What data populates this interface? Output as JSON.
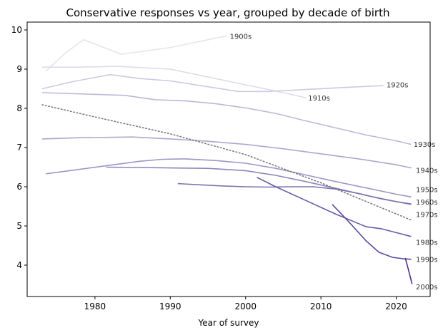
{
  "chart_data": {
    "type": "line",
    "title": "Conservative responses vs year, grouped by decade of birth",
    "xlabel": "Year of survey",
    "ylabel": "",
    "xlim": [
      1971,
      2024.5
    ],
    "ylim": [
      3.2,
      10.2
    ],
    "xticks": [
      1980,
      1990,
      2000,
      2010,
      2020
    ],
    "yticks": [
      4,
      5,
      6,
      7,
      8,
      9,
      10
    ],
    "grid": false,
    "legend": "none",
    "series": [
      {
        "name": "1900s",
        "color": "#e6e4f0",
        "x": [
          1973.5,
          1976,
          1978.5,
          1983.5,
          1990,
          1997.5
        ],
        "y": [
          8.95,
          9.4,
          9.75,
          9.38,
          9.55,
          9.85
        ]
      },
      {
        "name": "1910s",
        "color": "#dddaeb",
        "x": [
          1973,
          1978,
          1983,
          1990,
          1995,
          2000,
          2005,
          2008
        ],
        "y": [
          9.05,
          9.05,
          9.07,
          9.0,
          8.8,
          8.6,
          8.4,
          8.27
        ]
      },
      {
        "name": "1920s",
        "color": "#cdc9e2",
        "x": [
          1973,
          1977,
          1982,
          1986,
          1990,
          1995,
          1999,
          2003,
          2008,
          2013,
          2018.3
        ],
        "y": [
          8.5,
          8.68,
          8.86,
          8.76,
          8.7,
          8.55,
          8.43,
          8.43,
          8.48,
          8.53,
          8.58
        ]
      },
      {
        "name": "1930s",
        "color": "#bcb8da",
        "x": [
          1973,
          1978,
          1984,
          1988,
          1992,
          1996,
          2000,
          2004,
          2008,
          2012,
          2016,
          2020,
          2022
        ],
        "y": [
          8.4,
          8.37,
          8.33,
          8.22,
          8.19,
          8.12,
          8.01,
          7.87,
          7.68,
          7.5,
          7.32,
          7.17,
          7.08
        ]
      },
      {
        "name": "1940s",
        "color": "#aba7d0",
        "x": [
          1973,
          1978,
          1985,
          1990,
          1995,
          2000,
          2005,
          2010,
          2015,
          2020,
          2022
        ],
        "y": [
          7.22,
          7.25,
          7.27,
          7.22,
          7.16,
          7.08,
          6.97,
          6.84,
          6.71,
          6.56,
          6.48
        ]
      },
      {
        "name": "1950s",
        "color": "#9b96c6",
        "x": [
          1973.5,
          1977,
          1982,
          1986,
          1989,
          1992,
          1996,
          2000,
          2004,
          2008,
          2012,
          2016,
          2020,
          2022
        ],
        "y": [
          6.33,
          6.42,
          6.55,
          6.65,
          6.7,
          6.71,
          6.67,
          6.6,
          6.47,
          6.3,
          6.13,
          5.97,
          5.81,
          5.74
        ]
      },
      {
        "name": "1960s",
        "color": "#8c85bd",
        "x": [
          1981.5,
          1986,
          1990,
          1995,
          2000,
          2004,
          2008,
          2012,
          2016,
          2020,
          2022
        ],
        "y": [
          6.5,
          6.49,
          6.48,
          6.47,
          6.41,
          6.29,
          6.13,
          5.96,
          5.78,
          5.62,
          5.55
        ]
      },
      {
        "name": "1970s",
        "color": "#7a72b2",
        "x": [
          1991,
          1994,
          1997,
          2000,
          2003,
          2006,
          2009,
          2012,
          2015,
          2018,
          2020,
          2022
        ],
        "y": [
          6.08,
          6.05,
          6.02,
          6.0,
          5.99,
          6.0,
          6.0,
          5.94,
          5.83,
          5.69,
          5.62,
          5.56
        ]
      },
      {
        "name": "1980s",
        "color": "#6a5aa8",
        "x": [
          2001.5,
          2004,
          2008,
          2012,
          2016,
          2018,
          2020,
          2022
        ],
        "y": [
          6.24,
          6.0,
          5.65,
          5.3,
          4.98,
          4.93,
          4.83,
          4.73
        ]
      },
      {
        "name": "1990s",
        "color": "#5e4a9f",
        "x": [
          2011.5,
          2013.5,
          2016,
          2017.7,
          2019.5,
          2021,
          2022
        ],
        "y": [
          5.55,
          5.15,
          4.62,
          4.33,
          4.2,
          4.16,
          4.15
        ]
      },
      {
        "name": "2000s",
        "color": "#4f2d91",
        "x": [
          2021.2,
          2021.6,
          2022.1
        ],
        "y": [
          4.18,
          3.9,
          3.52
        ]
      }
    ],
    "trend": {
      "style": "dotted",
      "color": "#7a7a7a",
      "x": [
        1973,
        1980,
        1990,
        2000,
        2010,
        2022
      ],
      "y": [
        8.09,
        7.78,
        7.35,
        6.82,
        6.1,
        5.15
      ]
    },
    "annotations": [
      {
        "text": "1900s",
        "x": 1997.9,
        "y": 9.84
      },
      {
        "text": "1910s",
        "x": 2008.3,
        "y": 8.26
      },
      {
        "text": "1920s",
        "x": 2018.7,
        "y": 8.6
      },
      {
        "text": "1930s",
        "x": 2022.3,
        "y": 7.08
      },
      {
        "text": "1940s",
        "x": 2022.6,
        "y": 6.42
      },
      {
        "text": "1950s",
        "x": 2022.6,
        "y": 5.93
      },
      {
        "text": "1960s",
        "x": 2022.6,
        "y": 5.61
      },
      {
        "text": "1970s",
        "x": 2022.6,
        "y": 5.29
      },
      {
        "text": "1980s",
        "x": 2022.6,
        "y": 4.58
      },
      {
        "text": "1990s",
        "x": 2022.6,
        "y": 4.15
      },
      {
        "text": "2000s",
        "x": 2022.6,
        "y": 3.45
      }
    ]
  }
}
